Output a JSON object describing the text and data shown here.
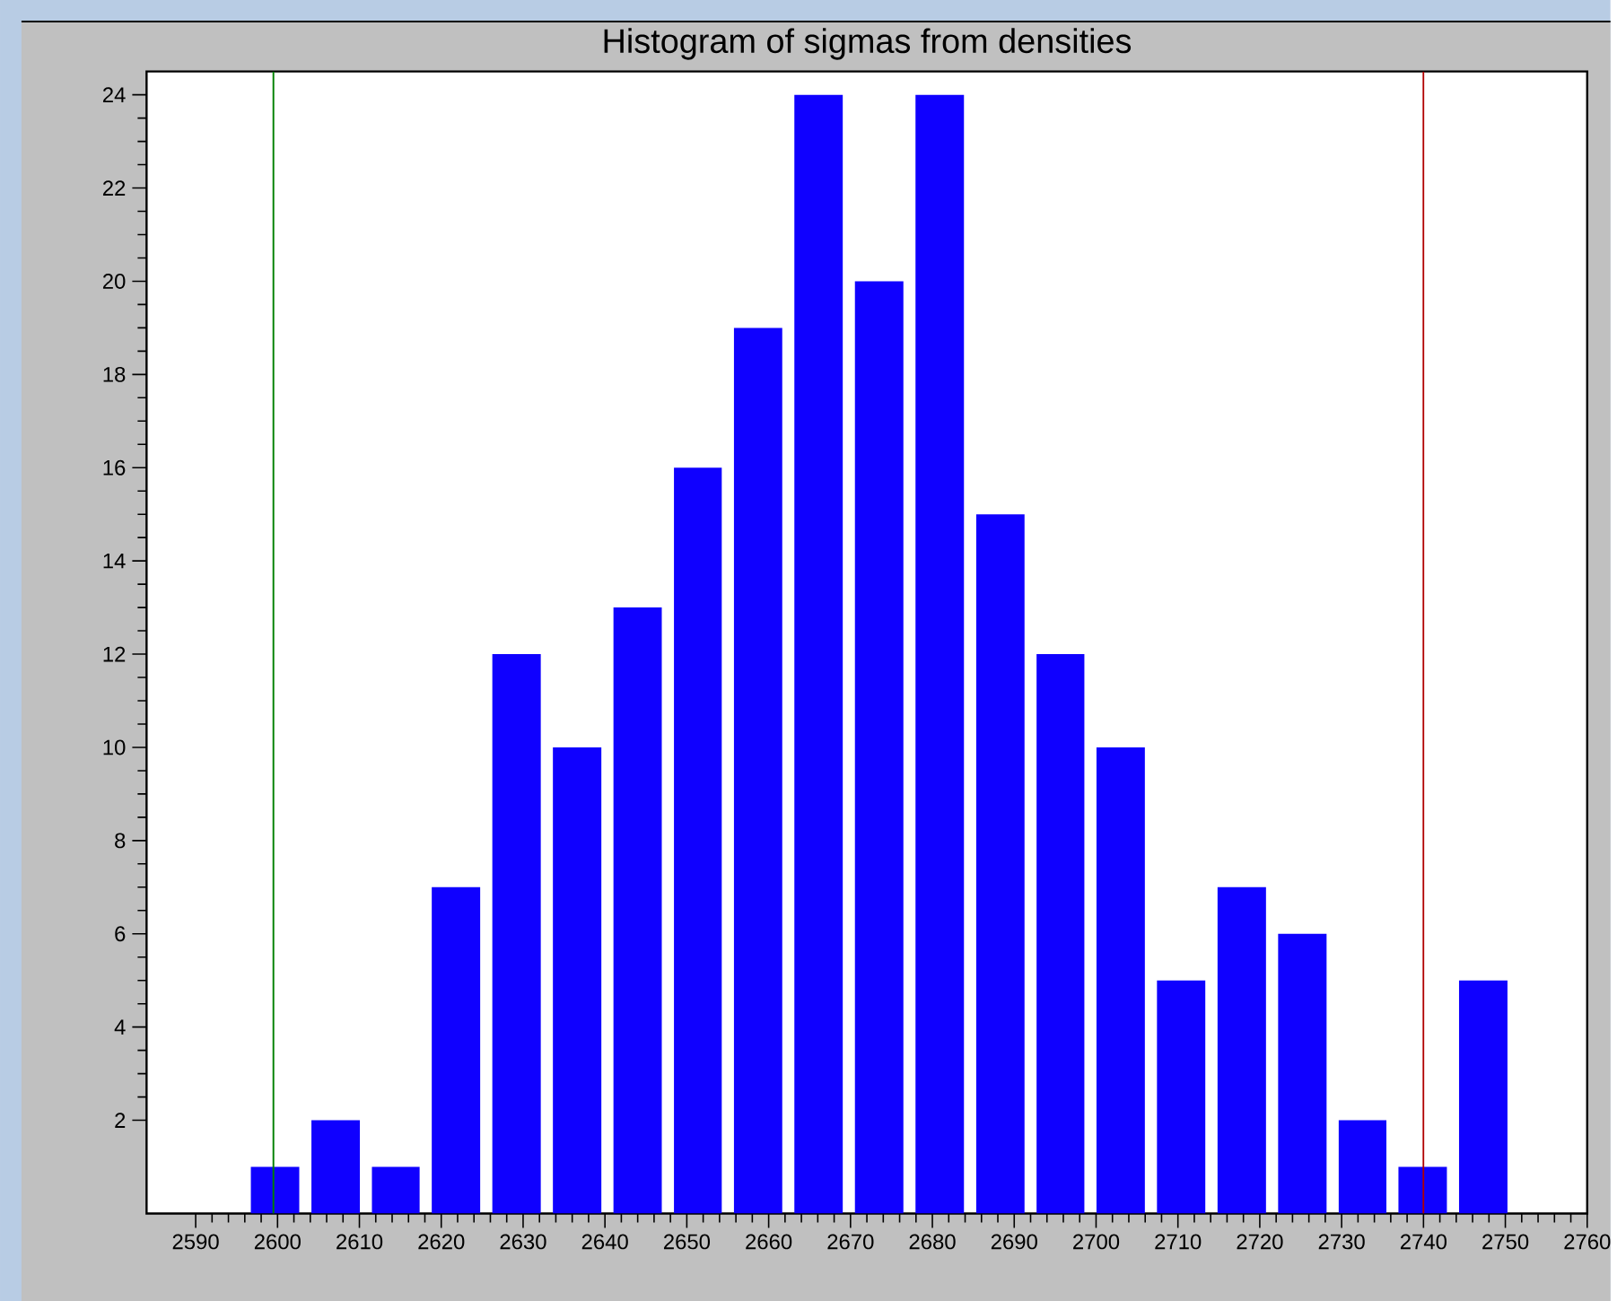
{
  "chart_data": {
    "type": "histogram",
    "title": "Histogram of sigmas from densities",
    "bins": [
      2596.0,
      2603.4,
      2610.8,
      2618.1,
      2625.5,
      2632.9,
      2640.3,
      2647.7,
      2655.0,
      2662.4,
      2669.8,
      2677.2,
      2684.6,
      2692.0,
      2699.3,
      2706.7,
      2714.1,
      2721.5,
      2728.9,
      2736.2,
      2743.6,
      2751.0
    ],
    "values": [
      1,
      2,
      1,
      7,
      12,
      10,
      13,
      16,
      19,
      24,
      20,
      24,
      15,
      12,
      10,
      5,
      7,
      6,
      2,
      1,
      5
    ],
    "color": "#0f00ff",
    "xlim": [
      2584,
      2760
    ],
    "ylim": [
      0,
      24.5
    ],
    "xticks": [
      2590,
      2600,
      2610,
      2620,
      2630,
      2640,
      2650,
      2660,
      2670,
      2680,
      2690,
      2700,
      2710,
      2720,
      2730,
      2740,
      2750,
      2760
    ],
    "yticks": [
      2,
      4,
      6,
      8,
      10,
      12,
      14,
      16,
      18,
      20,
      22,
      24
    ],
    "ref_lines": [
      {
        "axis": "x",
        "value": 2599.5,
        "color": "#008000"
      },
      {
        "axis": "x",
        "value": 2740,
        "color": "#b00000"
      }
    ]
  }
}
